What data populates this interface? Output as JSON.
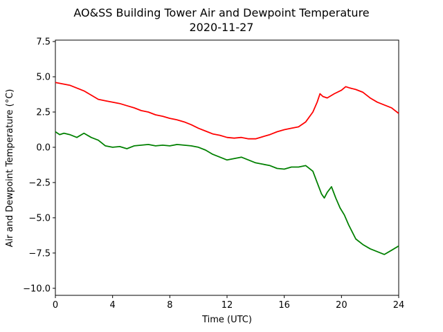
{
  "chart_data": {
    "type": "line",
    "title": "AO&SS Building Tower Air and Dewpoint Temperature",
    "subtitle": "2020-11-27",
    "xlabel": "Time (UTC)",
    "ylabel": "Air and Dewpoint Temperature (°C)",
    "xlim": [
      0,
      24
    ],
    "ylim": [
      -10.5,
      7.6
    ],
    "xticks": [
      0,
      4,
      8,
      12,
      16,
      20,
      24
    ],
    "xtick_labels": [
      "0",
      "4",
      "8",
      "12",
      "16",
      "20",
      "24"
    ],
    "yticks": [
      -10,
      -7.5,
      -5,
      -2.5,
      0,
      2.5,
      5,
      7.5
    ],
    "ytick_labels": [
      "−10.0",
      "−7.5",
      "−5.0",
      "−2.5",
      "0.0",
      "2.5",
      "5.0",
      "7.5"
    ],
    "grid": false,
    "series": [
      {
        "color": "#ff0000",
        "x": [
          0,
          0.5,
          1,
          1.5,
          2,
          2.5,
          3,
          3.5,
          4,
          4.5,
          5,
          5.5,
          6,
          6.5,
          7,
          7.5,
          8,
          8.5,
          9,
          9.5,
          10,
          10.5,
          11,
          11.5,
          12,
          12.5,
          13,
          13.5,
          14,
          14.5,
          15,
          15.5,
          16,
          16.5,
          17,
          17.5,
          18,
          18.3,
          18.5,
          18.7,
          19,
          19.5,
          20,
          20.3,
          20.6,
          21,
          21.5,
          22,
          22.5,
          23,
          23.5,
          24
        ],
        "values": [
          4.6,
          4.5,
          4.4,
          4.2,
          4.0,
          3.7,
          3.4,
          3.3,
          3.2,
          3.1,
          2.95,
          2.8,
          2.6,
          2.5,
          2.3,
          2.2,
          2.05,
          1.95,
          1.8,
          1.6,
          1.35,
          1.15,
          0.95,
          0.85,
          0.7,
          0.65,
          0.7,
          0.6,
          0.6,
          0.75,
          0.9,
          1.1,
          1.25,
          1.35,
          1.45,
          1.8,
          2.5,
          3.2,
          3.8,
          3.6,
          3.5,
          3.8,
          4.05,
          4.3,
          4.2,
          4.1,
          3.9,
          3.5,
          3.2,
          3.0,
          2.8,
          2.4
        ]
      },
      {
        "color": "#008000",
        "x": [
          0,
          0.3,
          0.6,
          1,
          1.5,
          2,
          2.5,
          3,
          3.5,
          4,
          4.5,
          5,
          5.5,
          6,
          6.5,
          7,
          7.5,
          8,
          8.5,
          9,
          9.5,
          10,
          10.5,
          11,
          11.5,
          12,
          12.5,
          13,
          13.5,
          14,
          14.5,
          15,
          15.5,
          16,
          16.5,
          17,
          17.5,
          18,
          18.3,
          18.6,
          18.8,
          19,
          19.3,
          19.6,
          19.9,
          20.2,
          20.5,
          21,
          21.5,
          22,
          22.5,
          23,
          23.5,
          24
        ],
        "values": [
          1.1,
          0.9,
          1.0,
          0.9,
          0.7,
          1.0,
          0.7,
          0.5,
          0.1,
          0.0,
          0.05,
          -0.1,
          0.1,
          0.15,
          0.2,
          0.1,
          0.15,
          0.1,
          0.2,
          0.15,
          0.1,
          0.0,
          -0.2,
          -0.5,
          -0.7,
          -0.9,
          -0.8,
          -0.7,
          -0.9,
          -1.1,
          -1.2,
          -1.3,
          -1.5,
          -1.55,
          -1.4,
          -1.4,
          -1.3,
          -1.7,
          -2.5,
          -3.3,
          -3.6,
          -3.2,
          -2.8,
          -3.6,
          -4.3,
          -4.8,
          -5.5,
          -6.5,
          -6.9,
          -7.2,
          -7.4,
          -7.6,
          -7.3,
          -7.0
        ]
      }
    ]
  }
}
